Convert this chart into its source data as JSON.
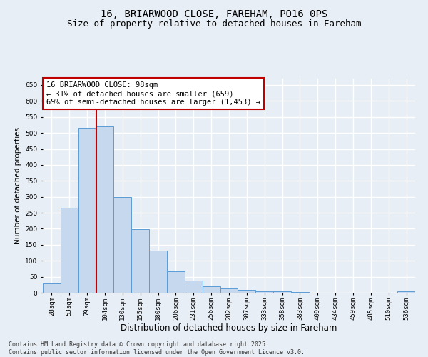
{
  "title": "16, BRIARWOOD CLOSE, FAREHAM, PO16 0PS",
  "subtitle": "Size of property relative to detached houses in Fareham",
  "xlabel": "Distribution of detached houses by size in Fareham",
  "ylabel": "Number of detached properties",
  "categories": [
    "28sqm",
    "53sqm",
    "79sqm",
    "104sqm",
    "130sqm",
    "155sqm",
    "180sqm",
    "206sqm",
    "231sqm",
    "256sqm",
    "282sqm",
    "307sqm",
    "333sqm",
    "358sqm",
    "383sqm",
    "409sqm",
    "434sqm",
    "459sqm",
    "485sqm",
    "510sqm",
    "536sqm"
  ],
  "values": [
    30,
    265,
    515,
    520,
    300,
    198,
    132,
    67,
    38,
    20,
    13,
    8,
    5,
    4,
    2,
    1,
    1,
    0,
    0,
    1,
    4
  ],
  "bar_color": "#c5d8ed",
  "bar_edge_color": "#5b9bd5",
  "bar_linewidth": 0.7,
  "vline_color": "#c00000",
  "vline_linewidth": 1.5,
  "vline_index": 2.5,
  "annotation_text": "16 BRIARWOOD CLOSE: 98sqm\n← 31% of detached houses are smaller (659)\n69% of semi-detached houses are larger (1,453) →",
  "annotation_box_color": "#c00000",
  "annotation_fontsize": 7.5,
  "ylim": [
    0,
    670
  ],
  "yticks": [
    0,
    50,
    100,
    150,
    200,
    250,
    300,
    350,
    400,
    450,
    500,
    550,
    600,
    650
  ],
  "footer_text": "Contains HM Land Registry data © Crown copyright and database right 2025.\nContains public sector information licensed under the Open Government Licence v3.0.",
  "background_color": "#e8eef5",
  "plot_bg_color": "#e8eef5",
  "grid_color": "#ffffff",
  "title_fontsize": 10,
  "subtitle_fontsize": 9,
  "xlabel_fontsize": 8.5,
  "ylabel_fontsize": 7.5,
  "tick_fontsize": 6.5,
  "footer_fontsize": 6
}
